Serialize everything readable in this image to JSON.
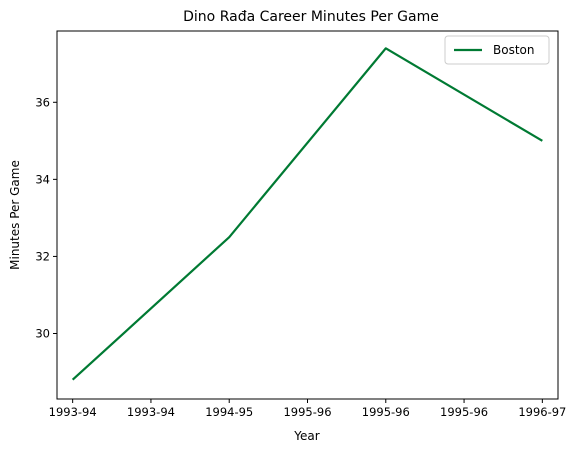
{
  "chart_data": {
    "type": "line",
    "title": "Dino Rađa Career Minutes Per Game",
    "xlabel": "Year",
    "ylabel": "Minutes Per Game",
    "x_ticks": [
      "1993-94",
      "1993-94",
      "1994-95",
      "1995-96",
      "1995-96",
      "1995-96",
      "1996-97"
    ],
    "x": [
      1993.0,
      1994.0,
      1995.0,
      1996.0
    ],
    "x_labels": [
      "1993-94",
      "1994-95",
      "1995-96",
      "1996-97"
    ],
    "series": [
      {
        "name": "Boston",
        "color": "#007a33",
        "values": [
          28.8,
          32.5,
          37.4,
          35.0
        ]
      }
    ],
    "ylim": [
      28.3,
      37.85
    ],
    "y_ticks": [
      30,
      32,
      34,
      36
    ],
    "grid": false,
    "legend": "top-right"
  }
}
